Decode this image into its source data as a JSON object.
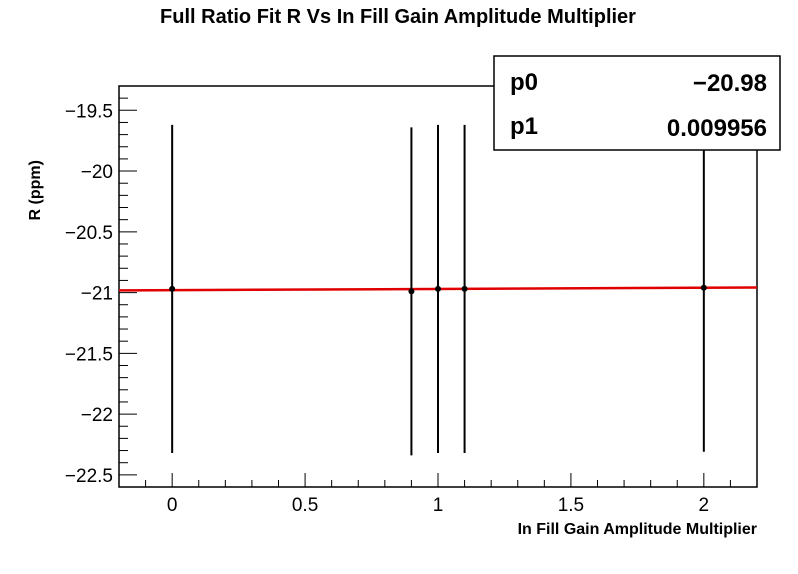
{
  "chart_data": {
    "type": "scatter",
    "title": "Full Ratio Fit R Vs In Fill Gain Amplitude Multiplier",
    "xlabel": "In Fill Gain Amplitude Multiplier",
    "ylabel": "R (ppm)",
    "xlim": [
      -0.2,
      2.2
    ],
    "ylim": [
      -22.6,
      -19.3
    ],
    "xticks": [
      0,
      0.5,
      1,
      1.5,
      2
    ],
    "xtick_labels": [
      "0",
      "0.5",
      "1",
      "1.5",
      "2"
    ],
    "yticks": [
      -19.5,
      -20,
      -20.5,
      -21,
      -21.5,
      -22,
      -22.5
    ],
    "ytick_labels": [
      "−19.5",
      "−20",
      "−20.5",
      "−21",
      "−21.5",
      "−22",
      "−22.5"
    ],
    "grid": false,
    "series": [
      {
        "points": [
          {
            "x": 0.0,
            "y": -20.97,
            "err": 1.35
          },
          {
            "x": 0.9,
            "y": -20.99,
            "err": 1.35
          },
          {
            "x": 1.0,
            "y": -20.97,
            "err": 1.35
          },
          {
            "x": 1.1,
            "y": -20.97,
            "err": 1.35
          },
          {
            "x": 2.0,
            "y": -20.96,
            "err": 1.35
          }
        ]
      }
    ],
    "fit": {
      "p0": -20.98,
      "p1": 0.009956,
      "color": "#e00000"
    },
    "stats_box": {
      "placement": "top-right",
      "rows": [
        {
          "label": "p0",
          "value": "−20.98"
        },
        {
          "label": "p1",
          "value": "0.009956"
        }
      ]
    }
  }
}
